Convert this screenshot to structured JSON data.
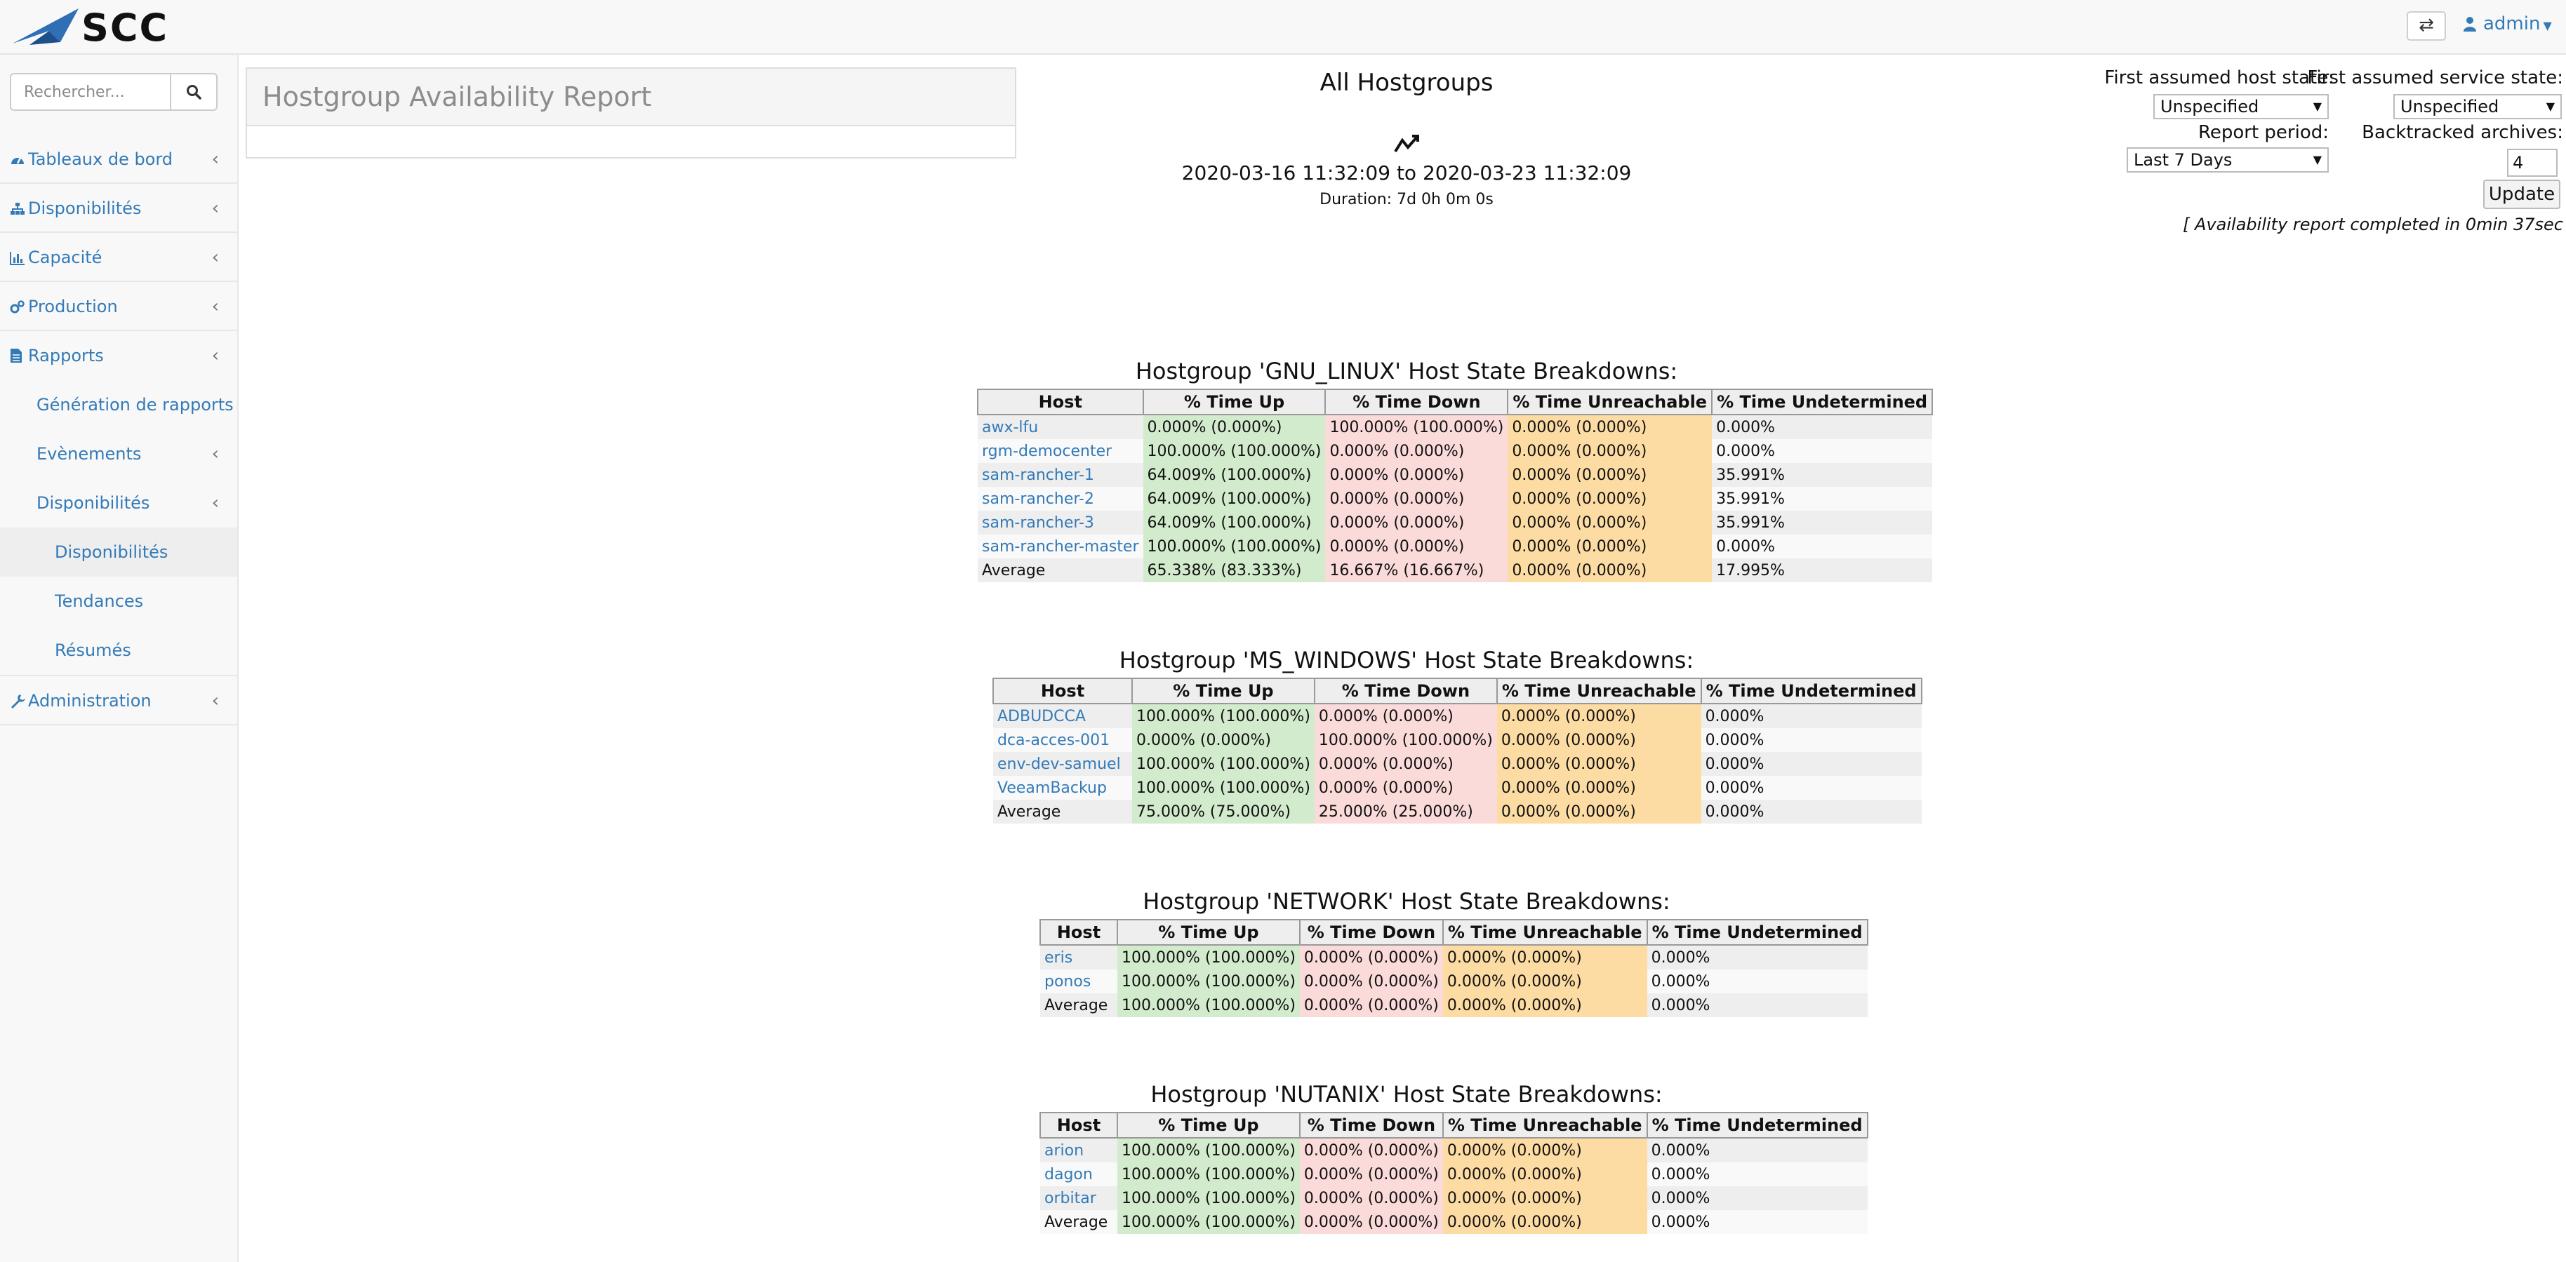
{
  "app": {
    "logo_text": "SCC"
  },
  "header": {
    "user": "admin"
  },
  "sidebar": {
    "search_placeholder": "Rechercher...",
    "items": [
      {
        "label": "Tableaux de bord",
        "icon": "dashboard-icon"
      },
      {
        "label": "Disponibilités",
        "icon": "sitemap-icon"
      },
      {
        "label": "Capacité",
        "icon": "bar-chart-icon"
      },
      {
        "label": "Production",
        "icon": "gears-icon"
      },
      {
        "label": "Rapports",
        "icon": "file-text-icon"
      }
    ],
    "sub_items": [
      {
        "label": "Génération de rapports"
      },
      {
        "label": "Evènements"
      },
      {
        "label": "Disponibilités"
      }
    ],
    "subsub_items": [
      {
        "label": "Disponibilités"
      },
      {
        "label": "Tendances"
      },
      {
        "label": "Résumés"
      }
    ],
    "admin": {
      "label": "Administration",
      "icon": "wrench-icon"
    }
  },
  "report": {
    "panel_title": "Hostgroup Availability Report",
    "heading": "All Hostgroups",
    "range_start": "2020-03-16 11:32:09",
    "range_to": "to",
    "range_end": "2020-03-23 11:32:09",
    "duration": "Duration: 7d 0h 0m 0s"
  },
  "options": {
    "host_state_label": "First assumed host state:",
    "host_state_value": "Unspecified",
    "service_state_label": "First assumed service state:",
    "service_state_value": "Unspecified",
    "period_label": "Report period:",
    "period_value": "Last 7 Days",
    "archives_label": "Backtracked archives:",
    "archives_value": "4",
    "update_label": "Update",
    "completed": "[ Availability report completed in 0min 37sec"
  },
  "columns": [
    "Host",
    "% Time Up",
    "% Time Down",
    "% Time Unreachable",
    "% Time Undetermined"
  ],
  "hostgroups": [
    {
      "title": "Hostgroup 'GNU_LINUX' Host State Breakdowns:",
      "rows": [
        [
          "awx-lfu",
          "0.000% (0.000%)",
          "100.000% (100.000%)",
          "0.000% (0.000%)",
          "0.000%"
        ],
        [
          "rgm-democenter",
          "100.000% (100.000%)",
          "0.000% (0.000%)",
          "0.000% (0.000%)",
          "0.000%"
        ],
        [
          "sam-rancher-1",
          "64.009% (100.000%)",
          "0.000% (0.000%)",
          "0.000% (0.000%)",
          "35.991%"
        ],
        [
          "sam-rancher-2",
          "64.009% (100.000%)",
          "0.000% (0.000%)",
          "0.000% (0.000%)",
          "35.991%"
        ],
        [
          "sam-rancher-3",
          "64.009% (100.000%)",
          "0.000% (0.000%)",
          "0.000% (0.000%)",
          "35.991%"
        ],
        [
          "sam-rancher-master",
          "100.000% (100.000%)",
          "0.000% (0.000%)",
          "0.000% (0.000%)",
          "0.000%"
        ]
      ],
      "average": [
        "Average",
        "65.338% (83.333%)",
        "16.667% (16.667%)",
        "0.000% (0.000%)",
        "17.995%"
      ]
    },
    {
      "title": "Hostgroup 'MS_WINDOWS' Host State Breakdowns:",
      "rows": [
        [
          "ADBUDCCA",
          "100.000% (100.000%)",
          "0.000% (0.000%)",
          "0.000% (0.000%)",
          "0.000%"
        ],
        [
          "dca-acces-001",
          "0.000% (0.000%)",
          "100.000% (100.000%)",
          "0.000% (0.000%)",
          "0.000%"
        ],
        [
          "env-dev-samuel",
          "100.000% (100.000%)",
          "0.000% (0.000%)",
          "0.000% (0.000%)",
          "0.000%"
        ],
        [
          "VeeamBackup",
          "100.000% (100.000%)",
          "0.000% (0.000%)",
          "0.000% (0.000%)",
          "0.000%"
        ]
      ],
      "average": [
        "Average",
        "75.000% (75.000%)",
        "25.000% (25.000%)",
        "0.000% (0.000%)",
        "0.000%"
      ]
    },
    {
      "title": "Hostgroup 'NETWORK' Host State Breakdowns:",
      "rows": [
        [
          "eris",
          "100.000% (100.000%)",
          "0.000% (0.000%)",
          "0.000% (0.000%)",
          "0.000%"
        ],
        [
          "ponos",
          "100.000% (100.000%)",
          "0.000% (0.000%)",
          "0.000% (0.000%)",
          "0.000%"
        ]
      ],
      "average": [
        "Average",
        "100.000% (100.000%)",
        "0.000% (0.000%)",
        "0.000% (0.000%)",
        "0.000%"
      ]
    },
    {
      "title": "Hostgroup 'NUTANIX' Host State Breakdowns:",
      "rows": [
        [
          "arion",
          "100.000% (100.000%)",
          "0.000% (0.000%)",
          "0.000% (0.000%)",
          "0.000%"
        ],
        [
          "dagon",
          "100.000% (100.000%)",
          "0.000% (0.000%)",
          "0.000% (0.000%)",
          "0.000%"
        ],
        [
          "orbitar",
          "100.000% (100.000%)",
          "0.000% (0.000%)",
          "0.000% (0.000%)",
          "0.000%"
        ]
      ],
      "average": [
        "Average",
        "100.000% (100.000%)",
        "0.000% (0.000%)",
        "0.000% (0.000%)",
        "0.000%"
      ]
    }
  ]
}
